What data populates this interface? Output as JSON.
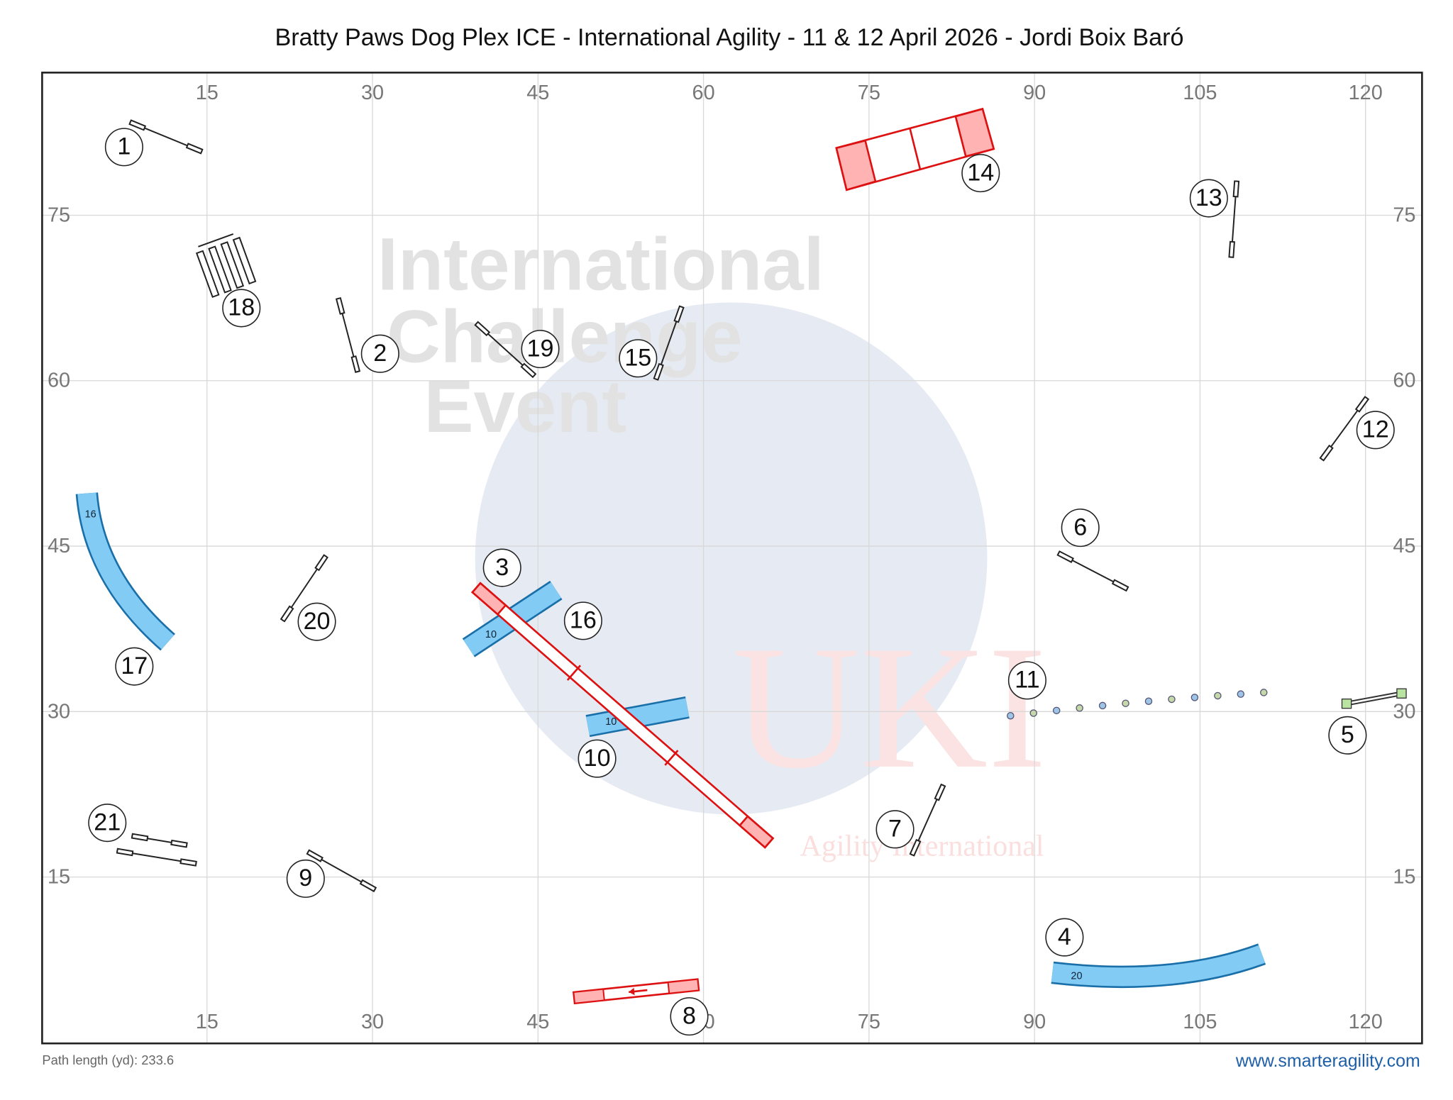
{
  "title": "Bratty Paws Dog Plex ICE - International Agility - 11 & 12 April 2026 - Jordi Boix Baró",
  "axes": {
    "x_ticks": [
      15,
      30,
      45,
      60,
      75,
      90,
      105,
      120
    ],
    "y_ticks": [
      15,
      30,
      45,
      60,
      75
    ]
  },
  "watermark": {
    "lines": [
      "International",
      "Challenge",
      "Event"
    ],
    "logo": "UKI",
    "logo_subtitle": "Agility International"
  },
  "obstacle_numbers": [
    1,
    2,
    3,
    4,
    5,
    6,
    7,
    8,
    9,
    10,
    11,
    12,
    13,
    14,
    15,
    16,
    17,
    18,
    19,
    20,
    21
  ],
  "tunnel_lengths": [
    16,
    10,
    10,
    20
  ],
  "footer": {
    "path_length": "Path length (yd): 233.6",
    "website": "www.smarteragility.com"
  }
}
